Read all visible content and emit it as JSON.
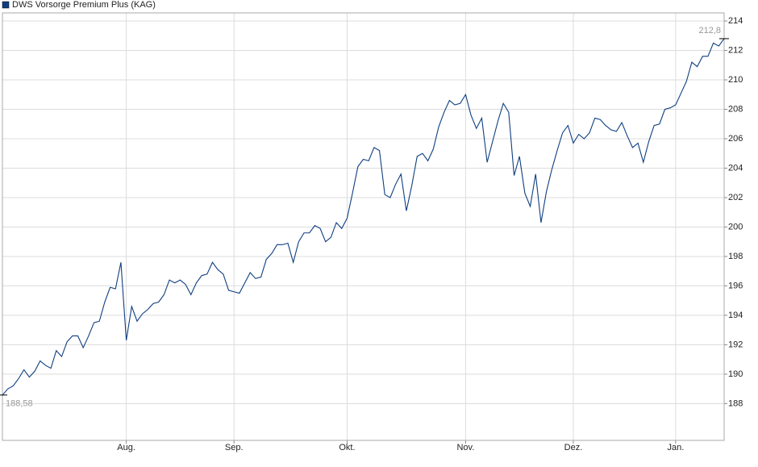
{
  "chart_data": {
    "type": "line",
    "categories": [
      null,
      null,
      null,
      null,
      null,
      null,
      null,
      null,
      null,
      null,
      null,
      null,
      null,
      null,
      null,
      null,
      null,
      null,
      null,
      null,
      null,
      null,
      null,
      "Aug.",
      null,
      null,
      null,
      null,
      null,
      null,
      null,
      null,
      null,
      null,
      null,
      null,
      null,
      null,
      null,
      null,
      null,
      null,
      null,
      "Sep.",
      null,
      null,
      null,
      null,
      null,
      null,
      null,
      null,
      null,
      null,
      null,
      null,
      null,
      null,
      null,
      null,
      null,
      null,
      null,
      null,
      "Okt.",
      null,
      null,
      null,
      null,
      null,
      null,
      null,
      null,
      null,
      null,
      null,
      null,
      null,
      null,
      null,
      null,
      null,
      null,
      null,
      null,
      null,
      "Nov.",
      null,
      null,
      null,
      null,
      null,
      null,
      null,
      null,
      null,
      null,
      null,
      null,
      null,
      null,
      null,
      null,
      null,
      null,
      null,
      "Dez.",
      null,
      null,
      null,
      null,
      null,
      null,
      null,
      null,
      null,
      null,
      null,
      null,
      null,
      null,
      null,
      null,
      null,
      null,
      "Jan.",
      null,
      null,
      null,
      null,
      null,
      null,
      null,
      null,
      null
    ],
    "series": [
      {
        "name": "DWS Vorsorge Premium Plus (KAG)",
        "color": "#0f3f80",
        "values": [
          188.58,
          189.0,
          189.2,
          189.7,
          190.3,
          189.8,
          190.2,
          190.9,
          190.6,
          190.4,
          191.6,
          191.2,
          192.2,
          192.6,
          192.6,
          191.8,
          192.6,
          193.5,
          193.6,
          194.9,
          195.9,
          195.8,
          197.6,
          192.3,
          194.6,
          193.6,
          194.1,
          194.4,
          194.8,
          194.9,
          195.4,
          196.4,
          196.2,
          196.4,
          196.1,
          195.4,
          196.2,
          196.7,
          196.8,
          197.6,
          197.1,
          196.8,
          195.7,
          195.6,
          195.5,
          196.2,
          196.9,
          196.5,
          196.6,
          197.8,
          198.2,
          198.8,
          198.8,
          198.9,
          197.6,
          199.0,
          199.6,
          199.6,
          200.1,
          199.9,
          199.0,
          199.3,
          200.3,
          199.9,
          200.6,
          202.3,
          204.1,
          204.6,
          204.5,
          205.4,
          205.2,
          202.2,
          202.0,
          202.9,
          203.6,
          201.1,
          202.8,
          204.8,
          205.0,
          204.5,
          205.3,
          206.8,
          207.8,
          208.6,
          208.3,
          208.4,
          209.0,
          207.6,
          206.7,
          207.4,
          204.4,
          205.8,
          207.2,
          208.4,
          207.8,
          203.5,
          204.8,
          202.3,
          201.4,
          203.6,
          200.3,
          202.4,
          203.9,
          205.2,
          206.4,
          206.9,
          205.7,
          206.3,
          206.0,
          206.4,
          207.4,
          207.3,
          206.9,
          206.6,
          206.5,
          207.1,
          206.2,
          205.4,
          205.7,
          204.4,
          205.8,
          206.9,
          207.0,
          208.0,
          208.1,
          208.3,
          209.1,
          209.9,
          211.2,
          210.9,
          211.6,
          211.6,
          212.5,
          212.3,
          212.8
        ],
        "value_labels": [
          "188,58",
          null,
          null,
          null,
          null,
          null,
          null,
          null,
          null,
          null,
          null,
          null,
          null,
          null,
          null,
          null,
          null,
          null,
          null,
          null,
          null,
          null,
          null,
          null,
          null,
          null,
          null,
          null,
          null,
          null,
          null,
          null,
          null,
          null,
          null,
          null,
          null,
          null,
          null,
          null,
          null,
          null,
          null,
          null,
          null,
          null,
          null,
          null,
          null,
          null,
          null,
          null,
          null,
          null,
          null,
          null,
          null,
          null,
          null,
          null,
          null,
          null,
          null,
          null,
          null,
          null,
          null,
          null,
          null,
          null,
          null,
          null,
          null,
          null,
          null,
          null,
          null,
          null,
          null,
          null,
          null,
          null,
          null,
          null,
          null,
          null,
          null,
          null,
          null,
          null,
          null,
          null,
          null,
          null,
          null,
          null,
          null,
          null,
          null,
          null,
          null,
          null,
          null,
          null,
          null,
          null,
          null,
          null,
          null,
          null,
          null,
          null,
          null,
          null,
          null,
          null,
          null,
          null,
          null,
          null,
          null,
          null,
          null,
          null,
          null,
          null,
          null,
          null,
          null,
          null,
          null,
          null,
          null,
          null,
          "212,8"
        ]
      }
    ],
    "ylim": [
      185.5,
      214.55
    ],
    "yticks": [
      188,
      190,
      192,
      194,
      196,
      198,
      200,
      202,
      204,
      206,
      208,
      210,
      212,
      214
    ],
    "grid": true,
    "legend": "top-left"
  }
}
